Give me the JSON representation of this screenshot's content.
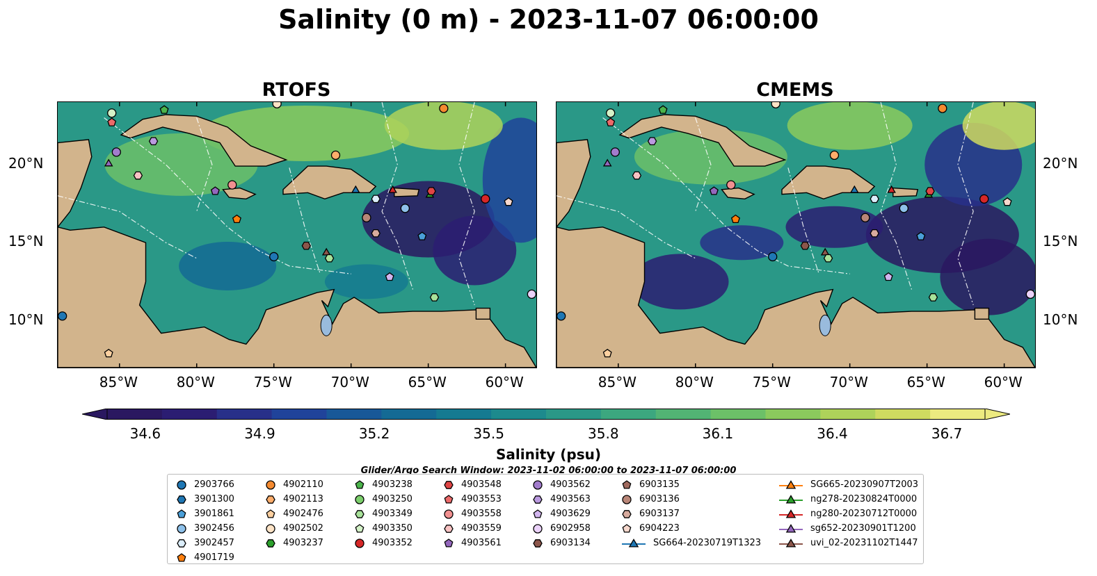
{
  "title": "Salinity (0 m) - 2023-11-07 06:00:00",
  "panels": [
    {
      "id": "rtofs",
      "title": "RTOFS"
    },
    {
      "id": "cmems",
      "title": "CMEMS"
    }
  ],
  "axes": {
    "x_ticks": [
      "85°W",
      "80°W",
      "75°W",
      "70°W",
      "65°W",
      "60°W"
    ],
    "y_ticks": [
      "20°N",
      "15°N",
      "10°N"
    ],
    "extent": {
      "lon": [
        -89,
        -58
      ],
      "lat": [
        7,
        24
      ]
    }
  },
  "colorbar": {
    "label": "Salinity (psu)",
    "ticks": [
      "34.6",
      "34.9",
      "35.2",
      "35.5",
      "35.8",
      "36.1",
      "36.4",
      "36.7"
    ],
    "range": [
      34.5,
      36.8
    ],
    "extend": "both",
    "colormap": "haline",
    "colors": [
      "#2a1860",
      "#2b1d72",
      "#283089",
      "#20439a",
      "#185898",
      "#146a94",
      "#157a91",
      "#1d8a8d",
      "#2a9887",
      "#3ca77f",
      "#52b474",
      "#6cc068",
      "#8bca5d",
      "#aed25a",
      "#cfda60",
      "#ecea80"
    ]
  },
  "search_window": "Glider/Argo Search Window: 2023-11-02 06:00:00 to 2023-11-07 06:00:00",
  "legend": {
    "columns": [
      [
        {
          "label": "2903766",
          "marker": "circle",
          "color": "#1f77b4"
        },
        {
          "label": "3901300",
          "marker": "hexagon",
          "color": "#1f77b4"
        },
        {
          "label": "3901861",
          "marker": "pentagon",
          "color": "#4a9fd8"
        },
        {
          "label": "3902456",
          "marker": "circle",
          "color": "#8ec1ea"
        },
        {
          "label": "3902457",
          "marker": "hexagon",
          "color": "#dceefb"
        },
        {
          "label": "4901719",
          "marker": "pentagon",
          "color": "#ff7f0e"
        }
      ],
      [
        {
          "label": "4902110",
          "marker": "circle",
          "color": "#f48a30"
        },
        {
          "label": "4902113",
          "marker": "hexagon",
          "color": "#fdad6b"
        },
        {
          "label": "4902476",
          "marker": "pentagon",
          "color": "#fdd0a0"
        },
        {
          "label": "4902502",
          "marker": "circle",
          "color": "#fde3c6"
        },
        {
          "label": "4903237",
          "marker": "hexagon",
          "color": "#2ca02c"
        }
      ],
      [
        {
          "label": "4903238",
          "marker": "pentagon",
          "color": "#4bb44b"
        },
        {
          "label": "4903250",
          "marker": "circle",
          "color": "#7ccf6c"
        },
        {
          "label": "4903349",
          "marker": "hexagon",
          "color": "#a8e29a"
        },
        {
          "label": "4903350",
          "marker": "pentagon",
          "color": "#d4f2c8"
        },
        {
          "label": "4903352",
          "marker": "circle",
          "color": "#d62728"
        }
      ],
      [
        {
          "label": "4903548",
          "marker": "hexagon",
          "color": "#e04545"
        },
        {
          "label": "4903553",
          "marker": "pentagon",
          "color": "#ec6a6a"
        },
        {
          "label": "4903558",
          "marker": "circle",
          "color": "#f19090"
        },
        {
          "label": "4903559",
          "marker": "hexagon",
          "color": "#f8c3c3"
        },
        {
          "label": "4903561",
          "marker": "pentagon",
          "color": "#9467bd"
        }
      ],
      [
        {
          "label": "4903562",
          "marker": "circle",
          "color": "#a27ccc"
        },
        {
          "label": "4903563",
          "marker": "hexagon",
          "color": "#bb9ae0"
        },
        {
          "label": "4903629",
          "marker": "pentagon",
          "color": "#d2b6ef"
        },
        {
          "label": "6902958",
          "marker": "circle",
          "color": "#ebd2fa"
        },
        {
          "label": "6903134",
          "marker": "hexagon",
          "color": "#8c564b"
        }
      ],
      [
        {
          "label": "6903135",
          "marker": "pentagon",
          "color": "#a06a5e"
        },
        {
          "label": "6903136",
          "marker": "circle",
          "color": "#b98678"
        },
        {
          "label": "6903137",
          "marker": "hexagon",
          "color": "#d8ab9e"
        },
        {
          "label": "6904223",
          "marker": "pentagon",
          "color": "#f6d8cd"
        },
        {
          "label": "SG664-20230719T1323",
          "marker": "triangle-line",
          "color": "#1f77b4"
        }
      ],
      [
        {
          "label": "SG665-20230907T2003",
          "marker": "triangle-line",
          "color": "#ff7f0e"
        },
        {
          "label": "ng278-20230824T0000",
          "marker": "triangle-line",
          "color": "#2ca02c"
        },
        {
          "label": "ng280-20230712T0000",
          "marker": "triangle-line",
          "color": "#d62728"
        },
        {
          "label": "sg652-20230901T1200",
          "marker": "triangle-line",
          "color": "#9467bd"
        },
        {
          "label": "uvi_02-20231102T1447",
          "marker": "triangle-line",
          "color": "#8c564b"
        }
      ]
    ]
  },
  "platforms": [
    {
      "lon": -85.5,
      "lat": 23.3,
      "marker": "circle",
      "color": "#d4f2c8"
    },
    {
      "lon": -85.5,
      "lat": 22.7,
      "marker": "pentagon",
      "color": "#ec6a6a"
    },
    {
      "lon": -82.1,
      "lat": 23.5,
      "marker": "pentagon",
      "color": "#4bb44b"
    },
    {
      "lon": -74.8,
      "lat": 23.9,
      "marker": "circle",
      "color": "#fde3c6"
    },
    {
      "lon": -64.0,
      "lat": 23.6,
      "marker": "circle",
      "color": "#f48a30"
    },
    {
      "lon": -85.2,
      "lat": 20.8,
      "marker": "circle",
      "color": "#a27ccc"
    },
    {
      "lon": -82.8,
      "lat": 21.5,
      "marker": "hexagon",
      "color": "#bb9ae0"
    },
    {
      "lon": -85.7,
      "lat": 20.1,
      "marker": "triangle",
      "color": "#9467bd"
    },
    {
      "lon": -83.8,
      "lat": 19.3,
      "marker": "hexagon",
      "color": "#f8c3c3"
    },
    {
      "lon": -71.0,
      "lat": 20.6,
      "marker": "circle",
      "color": "#fdad6b"
    },
    {
      "lon": -78.8,
      "lat": 18.3,
      "marker": "pentagon",
      "color": "#9467bd"
    },
    {
      "lon": -77.7,
      "lat": 18.7,
      "marker": "circle",
      "color": "#f19090"
    },
    {
      "lon": -77.4,
      "lat": 16.5,
      "marker": "pentagon",
      "color": "#ff7f0e"
    },
    {
      "lon": -69.7,
      "lat": 18.4,
      "marker": "triangle",
      "color": "#1f77b4"
    },
    {
      "lon": -67.3,
      "lat": 18.4,
      "marker": "triangle",
      "color": "#d62728"
    },
    {
      "lon": -64.9,
      "lat": 18.1,
      "marker": "triangle",
      "color": "#2ca02c"
    },
    {
      "lon": -64.8,
      "lat": 18.3,
      "marker": "hexagon",
      "color": "#e04545"
    },
    {
      "lon": -68.4,
      "lat": 17.8,
      "marker": "hexagon",
      "color": "#dceefb"
    },
    {
      "lon": -66.5,
      "lat": 17.2,
      "marker": "circle",
      "color": "#8ec1ea"
    },
    {
      "lon": -61.3,
      "lat": 17.8,
      "marker": "circle",
      "color": "#d62728"
    },
    {
      "lon": -59.8,
      "lat": 17.6,
      "marker": "pentagon",
      "color": "#f6d8cd"
    },
    {
      "lon": -69.0,
      "lat": 16.6,
      "marker": "circle",
      "color": "#b98678"
    },
    {
      "lon": -68.4,
      "lat": 15.6,
      "marker": "hexagon",
      "color": "#d8ab9e"
    },
    {
      "lon": -65.4,
      "lat": 15.4,
      "marker": "pentagon",
      "color": "#4a9fd8"
    },
    {
      "lon": -72.9,
      "lat": 14.8,
      "marker": "hexagon",
      "color": "#8c564b"
    },
    {
      "lon": -71.6,
      "lat": 14.4,
      "marker": "triangle",
      "color": "#8c564b"
    },
    {
      "lon": -71.4,
      "lat": 14.0,
      "marker": "hexagon",
      "color": "#a8e29a"
    },
    {
      "lon": -75.0,
      "lat": 14.1,
      "marker": "circle",
      "color": "#1f77b4"
    },
    {
      "lon": -67.5,
      "lat": 12.8,
      "marker": "pentagon",
      "color": "#d2b6ef"
    },
    {
      "lon": -64.6,
      "lat": 11.5,
      "marker": "hexagon",
      "color": "#a8e29a"
    },
    {
      "lon": -58.3,
      "lat": 11.7,
      "marker": "circle",
      "color": "#ebd2fa"
    },
    {
      "lon": -88.7,
      "lat": 10.3,
      "marker": "circle",
      "color": "#1f77b4"
    },
    {
      "lon": -85.7,
      "lat": 7.9,
      "marker": "pentagon",
      "color": "#fdd0a0"
    }
  ]
}
